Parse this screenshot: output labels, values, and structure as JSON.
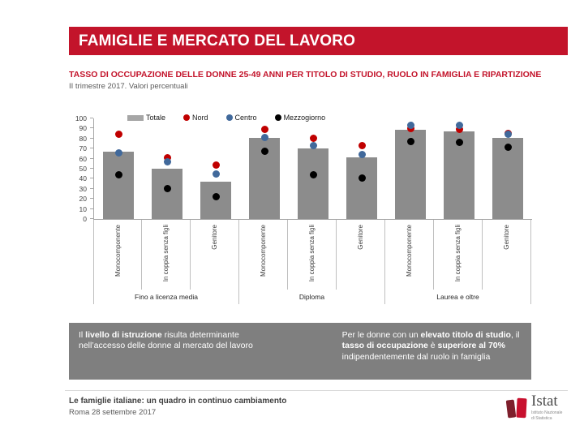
{
  "banner": {
    "title": "FAMIGLIE E MERCATO DEL LAVORO"
  },
  "heading": {
    "title": "TASSO DI OCCUPAZIONE DELLE DONNE 25-49 ANNI PER TITOLO DI STUDIO, RUOLO IN FAMIGLIA E RIPARTIZIONE",
    "subtitle": "II trimestre 2017. Valori percentuali"
  },
  "chart_data": {
    "type": "bar",
    "title": "Tasso di occupazione delle donne 25-49 anni per titolo di studio, ruolo in famiglia e ripartizione",
    "subtitle": "II trimestre 2017. Valori percentuali",
    "xlabel": "",
    "ylabel": "",
    "ylim": [
      0,
      100
    ],
    "ytick_step": 10,
    "legend_position": "top",
    "grid": false,
    "group_labels": [
      "Fino a licenza media",
      "Diploma",
      "Laurea e oltre"
    ],
    "categories": [
      "Monocomponente",
      "In coppia senza figli",
      "Genitore"
    ],
    "bar_series": {
      "name": "Totale",
      "color": "#8C8C8C",
      "values": [
        67,
        50,
        37,
        81,
        70,
        61,
        89,
        87,
        81
      ]
    },
    "dot_series": [
      {
        "name": "Nord",
        "color": "#C00000",
        "values": [
          84,
          61,
          54,
          89,
          80,
          73,
          90,
          89,
          85
        ]
      },
      {
        "name": "Centro",
        "color": "#41699B",
        "values": [
          66,
          57,
          45,
          81,
          73,
          64,
          93,
          93,
          84
        ]
      },
      {
        "name": "Mezzogiorno",
        "color": "#000000",
        "values": [
          44,
          30,
          22,
          67,
          44,
          41,
          77,
          76,
          71
        ]
      }
    ]
  },
  "insights": {
    "left": [
      {
        "text": "Il ",
        "bold": false
      },
      {
        "text": "livello di istruzione",
        "bold": true
      },
      {
        "text": "  risulta determinante nell’accesso delle donne al mercato del lavoro",
        "bold": false
      }
    ],
    "right": [
      {
        "text": "Per le donne con un ",
        "bold": false
      },
      {
        "text": "elevato titolo di studio",
        "bold": true
      },
      {
        "text": ", il ",
        "bold": false
      },
      {
        "text": "tasso di occupazione",
        "bold": true
      },
      {
        "text": " è ",
        "bold": false
      },
      {
        "text": "superiore al 70%",
        "bold": true
      },
      {
        "text": " indipendentemente dal ruolo in famiglia",
        "bold": false
      }
    ]
  },
  "footer": {
    "title": "Le famiglie italiane: un quadro in continuo cambiamento",
    "date": "Roma 28 settembre 2017",
    "logo_name": "Istat",
    "logo_subtext": "Istituto Nazionale\ndi Statistica"
  },
  "colors": {
    "banner_red": "#C3142B",
    "heading_red": "#C3142B",
    "bar_gray": "#8C8C8C",
    "insight_gray": "#7F7F7F",
    "logo_dark_red": "#7E1F2C",
    "logo_bright_red": "#C8102E"
  }
}
